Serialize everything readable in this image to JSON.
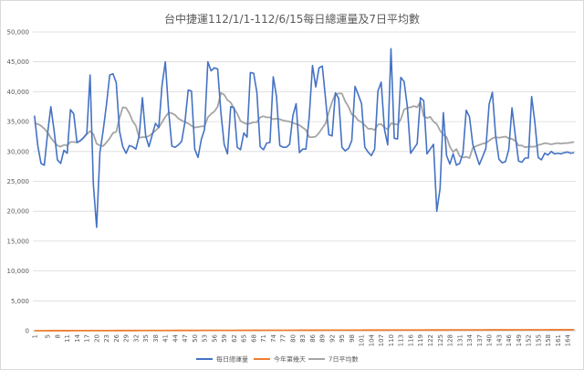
{
  "chart_data": {
    "type": "line",
    "title": "台中捷運112/1/1-112/6/15每日總運量及7日平均數",
    "xlabel": "",
    "ylabel": "",
    "ylim": [
      0,
      50000
    ],
    "yticks": [
      0,
      5000,
      10000,
      15000,
      20000,
      25000,
      30000,
      35000,
      40000,
      45000,
      50000
    ],
    "ytick_labels": [
      "0",
      "5,000",
      "10,000",
      "15,000",
      "20,000",
      "25,000",
      "30,000",
      "35,000",
      "40,000",
      "45,000",
      "50,000"
    ],
    "x_start": 1,
    "x_end": 166,
    "xtick_labels": [
      "1",
      "5",
      "8",
      "11",
      "14",
      "17",
      "20",
      "23",
      "26",
      "29",
      "32",
      "35",
      "38",
      "41",
      "44",
      "47",
      "50",
      "53",
      "56",
      "59",
      "62",
      "65",
      "68",
      "71",
      "74",
      "77",
      "80",
      "83",
      "86",
      "89",
      "92",
      "95",
      "98",
      "101",
      "104",
      "107",
      "110",
      "113",
      "116",
      "119",
      "122",
      "125",
      "128",
      "131",
      "134",
      "137",
      "140",
      "143",
      "146",
      "149",
      "152",
      "155",
      "158",
      "161",
      "164"
    ],
    "grid": "horizontal",
    "legend_position": "bottom",
    "series": [
      {
        "name": "每日總運量",
        "color": "#4472C4",
        "values": [
          36000,
          31000,
          28000,
          27700,
          33000,
          37500,
          33500,
          28600,
          28000,
          30200,
          29700,
          37000,
          36300,
          31500,
          31800,
          32300,
          33000,
          42800,
          24500,
          17300,
          29800,
          33500,
          37800,
          42800,
          43000,
          41500,
          33400,
          30800,
          29700,
          31000,
          30800,
          30400,
          32600,
          39000,
          32600,
          30800,
          32800,
          34700,
          34000,
          41100,
          45000,
          36900,
          30900,
          30700,
          31100,
          31700,
          34900,
          40300,
          40100,
          30400,
          29000,
          32000,
          33700,
          45000,
          43500,
          44000,
          43800,
          36500,
          31200,
          29600,
          37500,
          37300,
          30700,
          30300,
          33100,
          32400,
          43200,
          43100,
          39900,
          30800,
          30300,
          31400,
          31500,
          42500,
          39200,
          31000,
          30700,
          30700,
          31200,
          36000,
          38000,
          29800,
          30400,
          30400,
          35800,
          44400,
          40800,
          44000,
          44300,
          38800,
          32800,
          32600,
          39800,
          38900,
          30700,
          30100,
          30500,
          31800,
          40900,
          39500,
          38000,
          30700,
          29900,
          29300,
          30400,
          40100,
          41600,
          33700,
          31100,
          47200,
          32200,
          32100,
          42400,
          41700,
          37500,
          29700,
          30500,
          31300,
          39000,
          38500,
          29600,
          30400,
          31200,
          20000,
          23800,
          36500,
          29300,
          27900,
          29600,
          27700,
          28000,
          29700,
          36900,
          35800,
          31200,
          29500,
          27800,
          29100,
          30500,
          37900,
          39900,
          32600,
          28700,
          28100,
          28300,
          30300,
          37300,
          32700,
          28400,
          28200,
          28900,
          28900,
          39200,
          34800,
          29000,
          28600,
          29700,
          29400,
          30000,
          29600,
          29700,
          29600,
          29800,
          29900,
          29700,
          29800
        ],
        "values_note_excluded": false
      },
      {
        "name": "今年第幾天",
        "color": "#ED7D31",
        "values": [
          1,
          2,
          3,
          4,
          5,
          6,
          7,
          8,
          9,
          10,
          11,
          12,
          13,
          14,
          15,
          16,
          17,
          18,
          19,
          20,
          21,
          22,
          23,
          24,
          25,
          26,
          27,
          28,
          29,
          30,
          31,
          32,
          33,
          34,
          35,
          36,
          37,
          38,
          39,
          40,
          41,
          42,
          43,
          44,
          45,
          46,
          47,
          48,
          49,
          50,
          51,
          52,
          53,
          54,
          55,
          56,
          57,
          58,
          59,
          60,
          61,
          62,
          63,
          64,
          65,
          66,
          67,
          68,
          69,
          70,
          71,
          72,
          73,
          74,
          75,
          76,
          77,
          78,
          79,
          80,
          81,
          82,
          83,
          84,
          85,
          86,
          87,
          88,
          89,
          90,
          91,
          92,
          93,
          94,
          95,
          96,
          97,
          98,
          99,
          100,
          101,
          102,
          103,
          104,
          105,
          106,
          107,
          108,
          109,
          110,
          111,
          112,
          113,
          114,
          115,
          116,
          117,
          118,
          119,
          120,
          121,
          122,
          123,
          124,
          125,
          126,
          127,
          128,
          129,
          130,
          131,
          132,
          133,
          134,
          135,
          136,
          137,
          138,
          139,
          140,
          141,
          142,
          143,
          144,
          145,
          146,
          147,
          148,
          149,
          150,
          151,
          152,
          153,
          154,
          155,
          156,
          157,
          158,
          159,
          160,
          161,
          162,
          163,
          164,
          165,
          166
        ]
      },
      {
        "name": "7日平均數",
        "color": "#A5A5A5",
        "values": [
          34700,
          34600,
          34300,
          33800,
          33200,
          32300,
          31600,
          31000,
          30800,
          31100,
          31000,
          31600,
          31600,
          31500,
          31800,
          32300,
          32900,
          33400,
          32900,
          31300,
          31000,
          30900,
          31500,
          32200,
          33100,
          33300,
          35600,
          37400,
          37300,
          36400,
          35100,
          34300,
          32300,
          32400,
          32400,
          32600,
          33000,
          33500,
          34000,
          34900,
          35800,
          36500,
          36400,
          36100,
          35500,
          35200,
          34900,
          34700,
          34300,
          34000,
          34100,
          34200,
          34200,
          35700,
          36300,
          36700,
          37500,
          39800,
          39500,
          38600,
          38200,
          37200,
          36300,
          35100,
          34800,
          34600,
          34700,
          34900,
          34900,
          35700,
          35900,
          35700,
          35700,
          35400,
          35500,
          35400,
          35200,
          35100,
          35000,
          34800,
          34600,
          34400,
          34000,
          33600,
          32400,
          32400,
          32500,
          33100,
          33900,
          34700,
          36600,
          38300,
          39600,
          39700,
          39700,
          38400,
          37500,
          36200,
          35900,
          35200,
          34900,
          34400,
          33800,
          33800,
          33600,
          34500,
          34600,
          34000,
          33700,
          34700,
          34600,
          34500,
          35400,
          37000,
          37300,
          37400,
          37600,
          37400,
          38300,
          35900,
          35600,
          35800,
          35000,
          34600,
          33500,
          32800,
          32400,
          30800,
          29900,
          30400,
          29200,
          29000,
          29100,
          28900,
          30600,
          30900,
          31100,
          31300,
          31400,
          31800,
          32200,
          32400,
          32300,
          32400,
          32500,
          32200,
          32100,
          31800,
          31000,
          31000,
          30700,
          30800,
          30800,
          30800,
          31100,
          31200,
          31400,
          31300,
          31200,
          31300,
          31400,
          31300,
          31400,
          31400,
          31500,
          31600
        ]
      }
    ]
  }
}
